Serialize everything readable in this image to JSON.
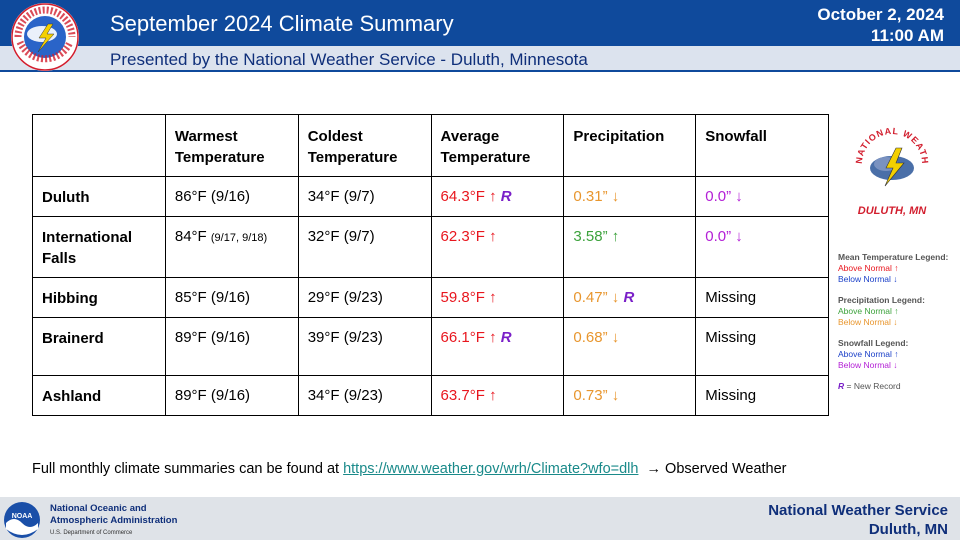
{
  "header": {
    "title": "September 2024 Climate Summary",
    "date": "October 2, 2024",
    "time": "11:00 AM",
    "subtitle": "Presented by the National Weather Service - Duluth, Minnesota"
  },
  "logo": {
    "ring_text": "NATIONAL WEATHER SERVICE",
    "caption": "DULUTH, MN"
  },
  "table": {
    "headers": [
      "",
      "Warmest Temperature",
      "Coldest Temperature",
      "Average Temperature",
      "Precipitation",
      "Snowfall"
    ],
    "rows": [
      {
        "station": "Duluth",
        "warmest": "86°F (9/16)",
        "warmest_small": "",
        "coldest": "34°F (9/7)",
        "avg": "64.3°F",
        "avg_arrow": "↑",
        "avg_record": "R",
        "precip": "0.31”",
        "precip_arrow": "↓",
        "precip_record": "",
        "snow": "0.0”",
        "snow_arrow": "↓"
      },
      {
        "station": "International Falls",
        "warmest": "84°F",
        "warmest_small": "(9/17, 9/18)",
        "coldest": "32°F (9/7)",
        "avg": "62.3°F",
        "avg_arrow": "↑",
        "avg_record": "",
        "precip": "3.58”",
        "precip_arrow": "↑",
        "precip_record": "",
        "snow": "0.0”",
        "snow_arrow": "↓"
      },
      {
        "station": "Hibbing",
        "warmest": "85°F (9/16)",
        "warmest_small": "",
        "coldest": "29°F (9/23)",
        "avg": "59.8°F",
        "avg_arrow": "↑",
        "avg_record": "",
        "precip": "0.47”",
        "precip_arrow": "↓",
        "precip_record": "R",
        "snow": "Missing",
        "snow_arrow": ""
      },
      {
        "station": "Brainerd",
        "warmest": "89°F (9/16)",
        "warmest_small": "",
        "coldest": "39°F (9/23)",
        "avg": "66.1°F",
        "avg_arrow": "↑",
        "avg_record": "R",
        "precip": "0.68”",
        "precip_arrow": "↓",
        "precip_record": "",
        "snow": "Missing",
        "snow_arrow": ""
      },
      {
        "station": "Ashland",
        "warmest": "89°F (9/16)",
        "warmest_small": "",
        "coldest": "34°F (9/23)",
        "avg": "63.7°F",
        "avg_arrow": "↑",
        "avg_record": "",
        "precip": "0.73”",
        "precip_arrow": "↓",
        "precip_record": "",
        "snow": "Missing",
        "snow_arrow": ""
      }
    ]
  },
  "legend": {
    "temp_title": "Mean Temperature Legend:",
    "temp_above": "Above Normal ↑",
    "temp_below": "Below Normal ↓",
    "precip_title": "Precipitation Legend:",
    "precip_above": "Above Normal ↑",
    "precip_below": "Below Normal ↓",
    "snow_title": "Snowfall Legend:",
    "snow_above": "Above Normal ↑",
    "snow_below": "Below Normal ↓",
    "record_letter": "R",
    "record_text": "= New Record"
  },
  "footnote": {
    "prefix": "Full monthly  climate summaries can be found at",
    "link": "https://www.weather.gov/wrh/Climate?wfo=dlh",
    "suffix": "→ Observed Weather"
  },
  "footer": {
    "noaa_line1": "National Oceanic and",
    "noaa_line2": "Atmospheric Administration",
    "noaa_line3": "U.S. Department of Commerce",
    "noaa_badge": "NOAA",
    "org_line1": "National  Weather  Service",
    "org_line2": "Duluth,  MN"
  },
  "colors": {
    "header_blue": "#0f4a9c",
    "above_normal_temp": "#e8161e",
    "below_normal_precip": "#e8962e",
    "above_normal_precip": "#3ca23c",
    "below_normal_snow": "#b31fd6",
    "record": "#7a1fc8"
  }
}
